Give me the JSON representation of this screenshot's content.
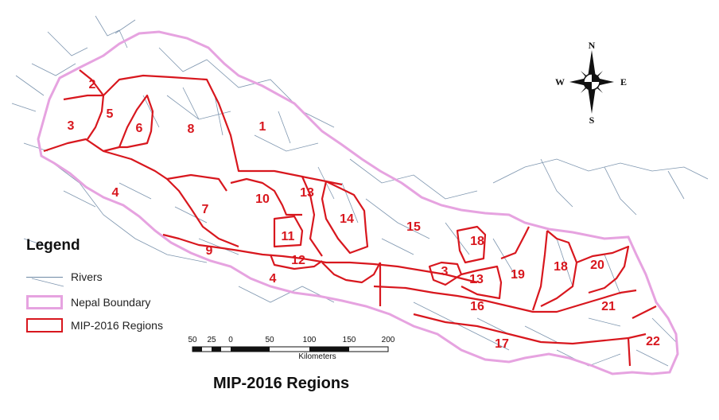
{
  "map": {
    "title": "MIP-2016 Regions",
    "regions": [
      "1",
      "2",
      "3",
      "4",
      "5",
      "6",
      "7",
      "8",
      "9",
      "10",
      "11",
      "12",
      "13",
      "14",
      "15",
      "16",
      "17",
      "18",
      "19",
      "20",
      "21",
      "22",
      "3",
      "4",
      "13",
      "18"
    ],
    "colors": {
      "rivers": "#6f8aa6",
      "boundary": "#e6a3e0",
      "regions": "#d8171e"
    }
  },
  "legend": {
    "title": "Legend",
    "items": [
      {
        "label": "Rivers",
        "symbol": "line"
      },
      {
        "label": "Nepal Boundary",
        "symbol": "pink-outline-box"
      },
      {
        "label": "MIP-2016 Regions",
        "symbol": "red-outline-box"
      }
    ]
  },
  "scale_bar": {
    "ticks": [
      "50",
      "25",
      "0",
      "50",
      "100",
      "150",
      "200"
    ],
    "unit": "Kilometers"
  },
  "compass": {
    "n": "N",
    "s": "S",
    "e": "E",
    "w": "W"
  }
}
